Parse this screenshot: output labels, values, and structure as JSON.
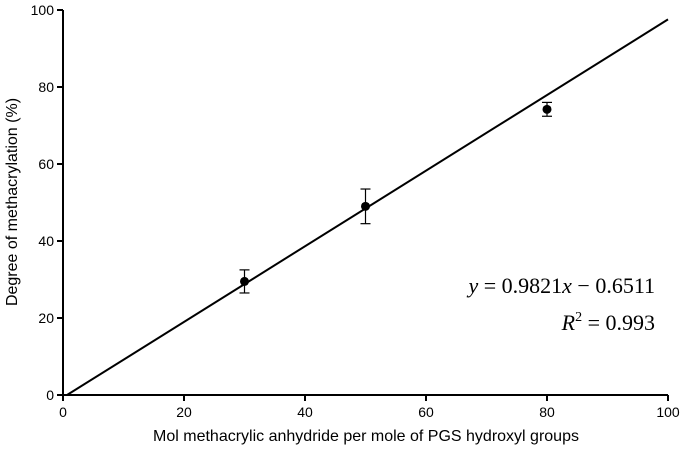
{
  "chart_data": {
    "type": "scatter",
    "xlabel": "Mol methacrylic anhydride per mole of PGS hydroxyl groups",
    "ylabel": "Degree of methacrylation (%)",
    "xlim": [
      0,
      100
    ],
    "ylim": [
      0,
      100
    ],
    "xticks": [
      "0",
      "20",
      "40",
      "60",
      "80",
      "100"
    ],
    "yticks": [
      "0",
      "20",
      "40",
      "60",
      "80",
      "100"
    ],
    "grid": false,
    "points": [
      {
        "x": 30,
        "y": 29.5,
        "err": 3.0
      },
      {
        "x": 50,
        "y": 49.0,
        "err": 4.5
      },
      {
        "x": 80,
        "y": 74.2,
        "err": 1.8
      }
    ],
    "fit_line": {
      "slope": 0.9821,
      "intercept": -0.6511
    },
    "annotations": {
      "eq_y": "y",
      "eq_eq1": " = 0.9821",
      "eq_x": "x",
      "eq_rest": " − 0.6511",
      "r2_r": "R",
      "r2_sup": "2",
      "r2_rest": " = 0.993"
    }
  }
}
